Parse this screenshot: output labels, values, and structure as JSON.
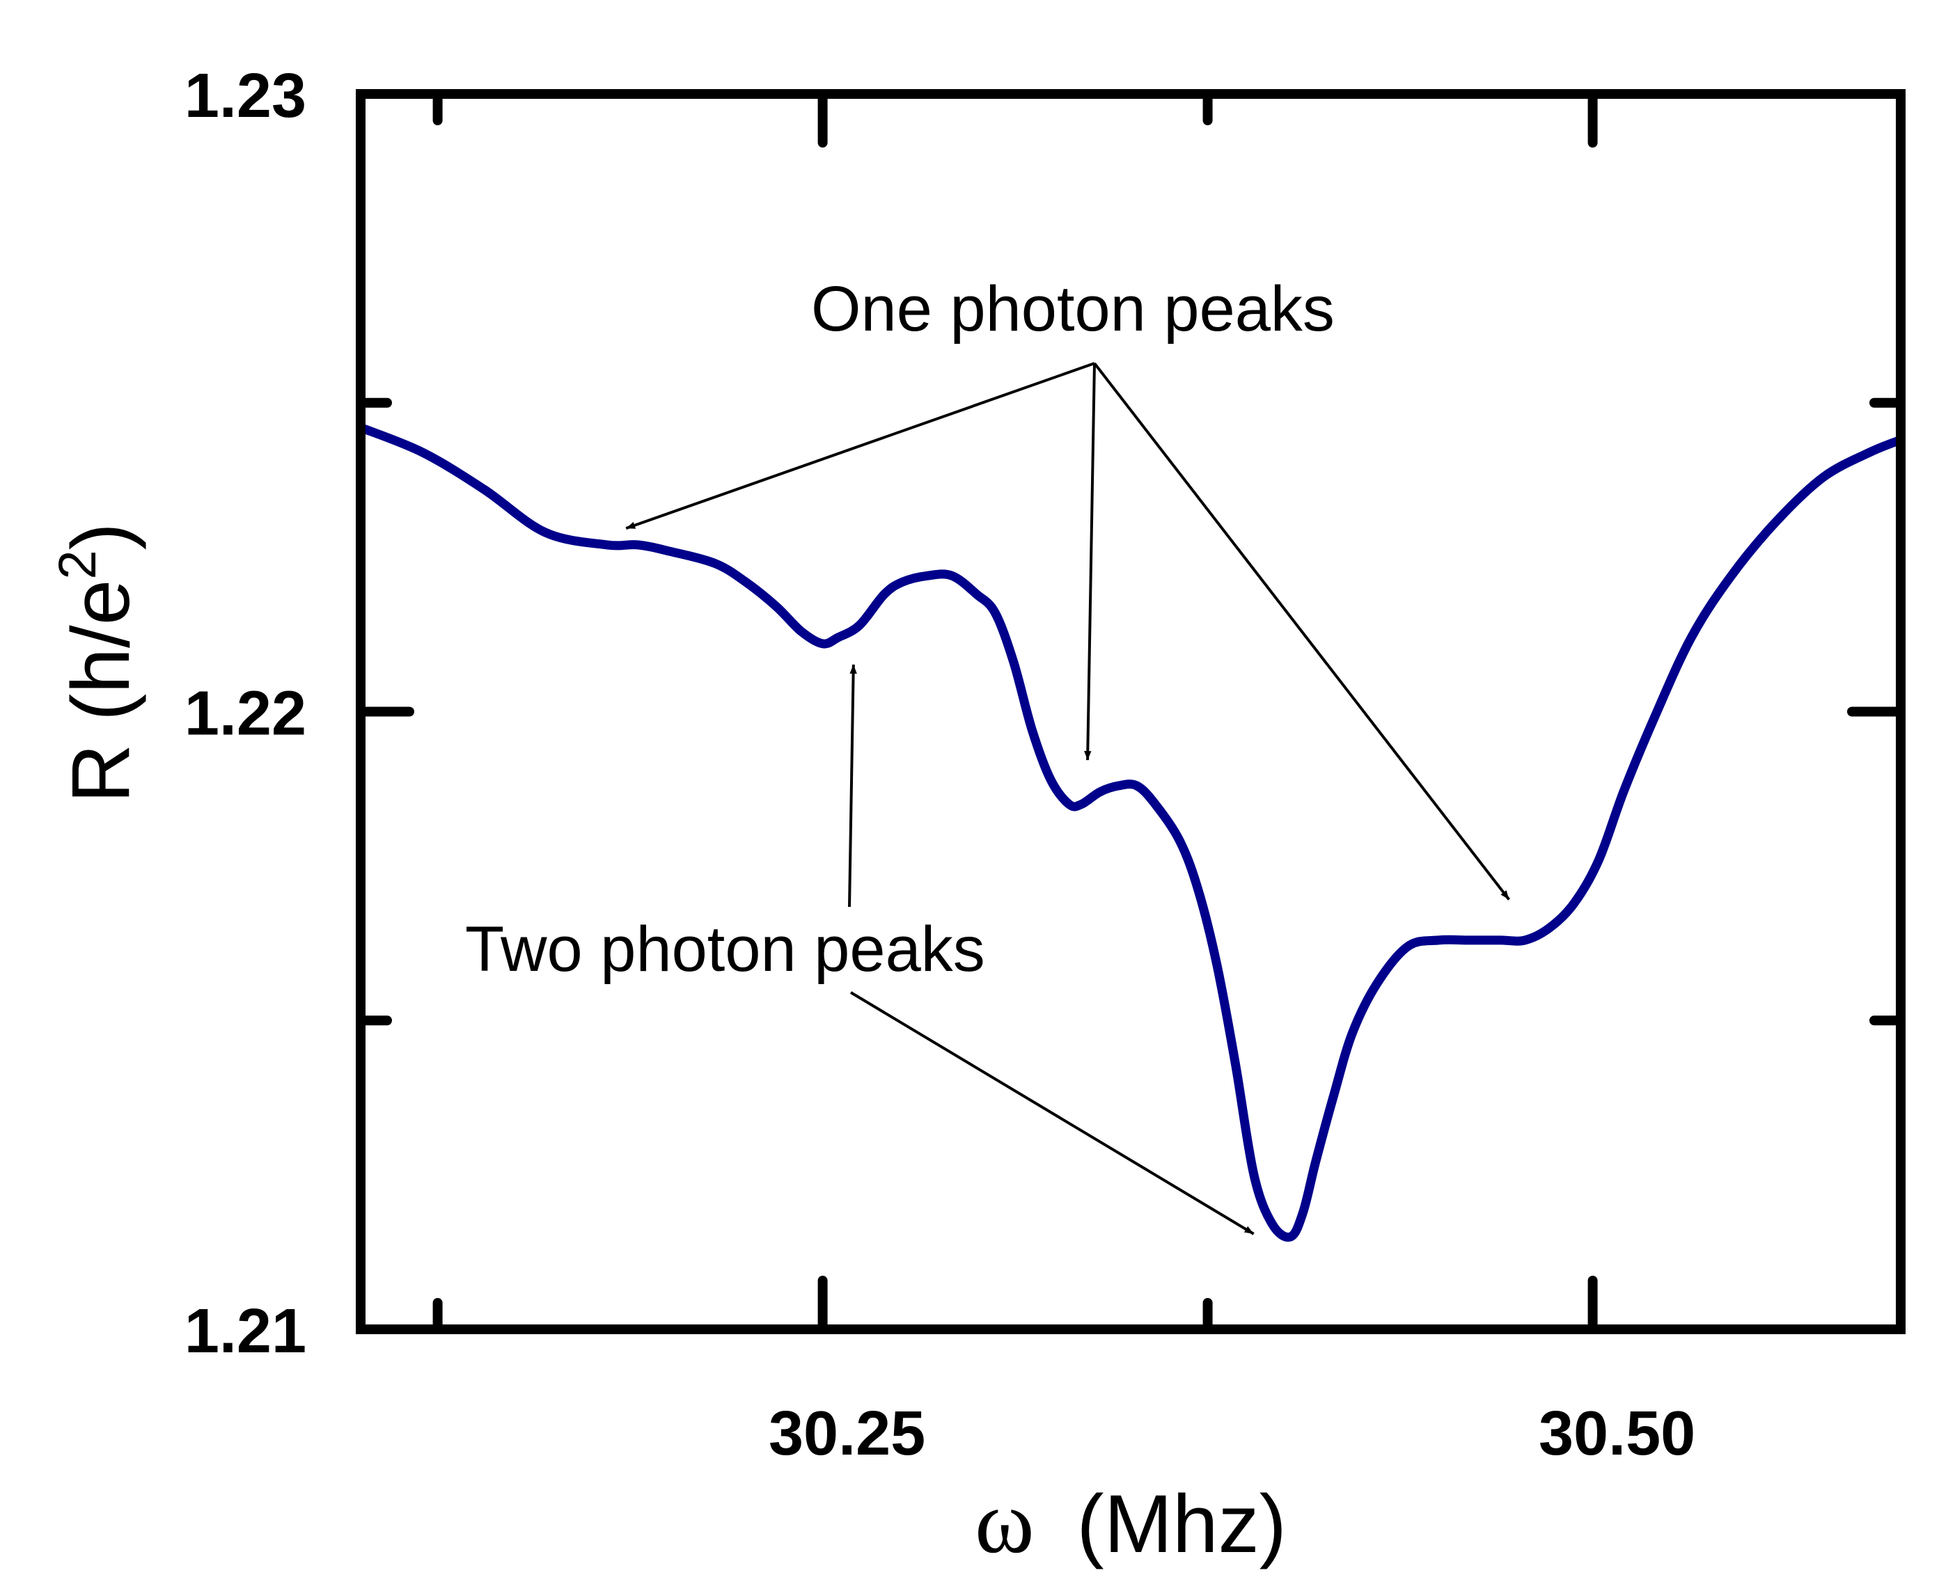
{
  "chart_data": {
    "type": "line",
    "title": "",
    "xlabel_symbol": "ω",
    "xlabel_unit": "(Mhz)",
    "ylabel": "R (h/e",
    "ylabel_sup": "2",
    "ylabel_close": ")",
    "xlim": [
      30.1,
      30.6
    ],
    "ylim": [
      1.21,
      1.23
    ],
    "x_ticks_major": [
      {
        "value": 30.25,
        "label": "30.25"
      },
      {
        "value": 30.5,
        "label": "30.50"
      }
    ],
    "x_ticks_minor": [
      30.125,
      30.375
    ],
    "y_ticks_major": [
      {
        "value": 1.21,
        "label": "1.21"
      },
      {
        "value": 1.22,
        "label": "1.22"
      },
      {
        "value": 1.23,
        "label": "1.23"
      }
    ],
    "y_ticks_minor": [
      1.215,
      1.225
    ],
    "grid": false,
    "series": [
      {
        "name": "R",
        "color": "#00008B",
        "x": [
          30.1,
          30.12,
          30.14,
          30.16,
          30.18,
          30.19,
          30.2,
          30.215,
          30.225,
          30.235,
          30.243,
          30.25,
          30.255,
          30.262,
          30.27,
          30.276,
          30.284,
          30.292,
          30.3,
          30.306,
          30.312,
          30.318,
          30.324,
          30.33,
          30.334,
          30.34,
          30.346,
          30.352,
          30.358,
          30.366,
          30.372,
          30.378,
          30.384,
          30.39,
          30.396,
          30.402,
          30.406,
          30.41,
          30.416,
          30.422,
          30.43,
          30.44,
          30.45,
          30.46,
          30.47,
          30.478,
          30.486,
          30.494,
          30.502,
          30.51,
          30.52,
          30.532,
          30.545,
          30.56,
          30.575,
          30.59,
          30.6
        ],
        "y": [
          1.2246,
          1.2242,
          1.2236,
          1.2229,
          1.2227,
          1.2227,
          1.2226,
          1.2224,
          1.2221,
          1.2217,
          1.2213,
          1.2211,
          1.2212,
          1.2214,
          1.2219,
          1.2221,
          1.2222,
          1.2222,
          1.2219,
          1.2216,
          1.2208,
          1.2197,
          1.2189,
          1.2185,
          1.2185,
          1.2187,
          1.2188,
          1.2188,
          1.2185,
          1.2179,
          1.2171,
          1.2159,
          1.2143,
          1.2125,
          1.2117,
          1.2115,
          1.2119,
          1.2127,
          1.2138,
          1.2148,
          1.2156,
          1.2162,
          1.2163,
          1.2163,
          1.2163,
          1.2163,
          1.2165,
          1.2169,
          1.2176,
          1.2187,
          1.2199,
          1.2212,
          1.2222,
          1.2231,
          1.2238,
          1.2242,
          1.2244
        ]
      }
    ],
    "annotations": [
      {
        "id": "one-photon",
        "text": "One photon peaks",
        "targets": [
          [
            30.183,
            1.2229
          ],
          [
            30.336,
            1.2189
          ],
          [
            30.476,
            1.2168
          ]
        ]
      },
      {
        "id": "two-photon",
        "text": "Two photon peaks",
        "targets": [
          [
            30.26,
            1.2211
          ],
          [
            30.394,
            1.2115
          ]
        ]
      }
    ]
  }
}
